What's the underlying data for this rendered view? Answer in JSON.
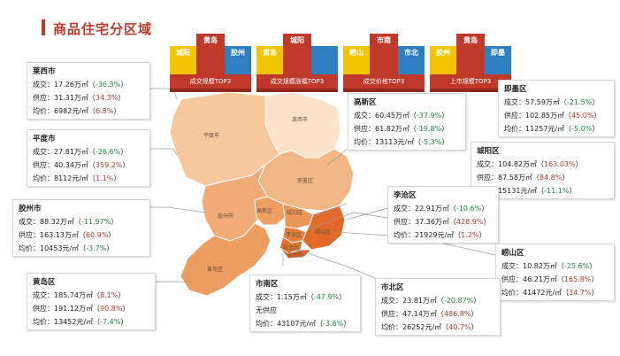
{
  "page": {
    "title": "商品住宅分区域"
  },
  "colors": {
    "accent": "#c0392b",
    "pos": "#c0392b",
    "neg": "#1e8c3a",
    "yellow": "#f3c400",
    "blue": "#2e7fc1",
    "red": "#c0392b"
  },
  "podiums": [
    {
      "label": "成交规模TOP3",
      "blocks": [
        {
          "text": "城阳",
          "color": "yellow"
        },
        {
          "text": "黄岛",
          "color": "red"
        },
        {
          "text": "胶州",
          "color": "blue"
        }
      ]
    },
    {
      "label": "成交规模涨幅TOP3",
      "blocks": [
        {
          "text": "黄岛",
          "color": "yellow"
        },
        {
          "text": "城阳",
          "color": "red"
        },
        {
          "text": "",
          "color": "blue"
        }
      ]
    },
    {
      "label": "成交价格TOP3",
      "blocks": [
        {
          "text": "崂山",
          "color": "yellow"
        },
        {
          "text": "市南",
          "color": "red"
        },
        {
          "text": "市北",
          "color": "blue"
        }
      ]
    },
    {
      "label": "上市规模TOP3",
      "blocks": [
        {
          "text": "胶州",
          "color": "yellow"
        },
        {
          "text": "黄岛",
          "color": "red"
        },
        {
          "text": "即墨",
          "color": "blue"
        }
      ]
    }
  ],
  "map_labels": [
    "莱西市",
    "平度市",
    "即墨区",
    "胶州市",
    "高新区",
    "城阳区",
    "李沧区",
    "崂山区",
    "市北区",
    "市南区",
    "黄岛区"
  ],
  "chart_data": {
    "type": "table",
    "row_labels": {
      "deal": "成交：",
      "supply": "供应：",
      "price": "均价："
    },
    "regions": [
      {
        "name": "莱西市",
        "deal": "17.26万㎡",
        "deal_pct": "-36.3%",
        "supply": "31.31万㎡",
        "supply_pct": "34.3%",
        "price": "6982元/㎡",
        "price_pct": "6.8%"
      },
      {
        "name": "平度市",
        "deal": "27.81万㎡",
        "deal_pct": "-26.6%",
        "supply": "40.34万㎡",
        "supply_pct": "359.2%",
        "price": "8112元/㎡",
        "price_pct": "1.1%"
      },
      {
        "name": "胶州市",
        "deal": "88.32万㎡",
        "deal_pct": "-11.97%",
        "supply": "163.13万㎡",
        "supply_pct": "60.9%",
        "price": "10453元/㎡",
        "price_pct": "-3.7%"
      },
      {
        "name": "黄岛区",
        "deal": "185.74万㎡",
        "deal_pct": "8.1%",
        "supply": "191.12万㎡",
        "supply_pct": "90.8%",
        "price": "13452元/㎡",
        "price_pct": "-7.4%"
      },
      {
        "name": "高新区",
        "deal": "60.45万㎡",
        "deal_pct": "-37.9%",
        "supply": "61.82万㎡",
        "supply_pct": "-19.8%",
        "price": "13113元/㎡",
        "price_pct": "-5.3%"
      },
      {
        "name": "即墨区",
        "deal": "57.59万㎡",
        "deal_pct": "-21.5%",
        "supply": "102.85万㎡",
        "supply_pct": "45.0%",
        "price": "11257元/㎡",
        "price_pct": "-5.0%"
      },
      {
        "name": "城阳区",
        "deal": "104.82万㎡",
        "deal_pct": "163.03%",
        "supply": "87.58万㎡",
        "supply_pct": "84.8%",
        "price": "15131元/㎡",
        "price_pct": "-11.1%"
      },
      {
        "name": "李沧区",
        "deal": "22.91万㎡",
        "deal_pct": "-10.6%",
        "supply": "37.36万㎡",
        "supply_pct": "428.9%",
        "price": "21929元/㎡",
        "price_pct": "1.2%"
      },
      {
        "name": "崂山区",
        "deal": "10.82万㎡",
        "deal_pct": "-25.6%",
        "supply": "46.21万㎡",
        "supply_pct": "165.8%",
        "price": "41472元/㎡",
        "price_pct": "34.7%"
      },
      {
        "name": "市南区",
        "deal": "1.15万㎡",
        "deal_pct": "-47.9%",
        "supply_text": "无供应",
        "price": "43107元/㎡",
        "price_pct": "-3.6%"
      },
      {
        "name": "市北区",
        "deal": "23.81万㎡",
        "deal_pct": "-20.87%",
        "supply": "47.14万㎡",
        "supply_pct": "486.8%",
        "price": "26252元/㎡",
        "price_pct": "40.7%"
      }
    ]
  }
}
